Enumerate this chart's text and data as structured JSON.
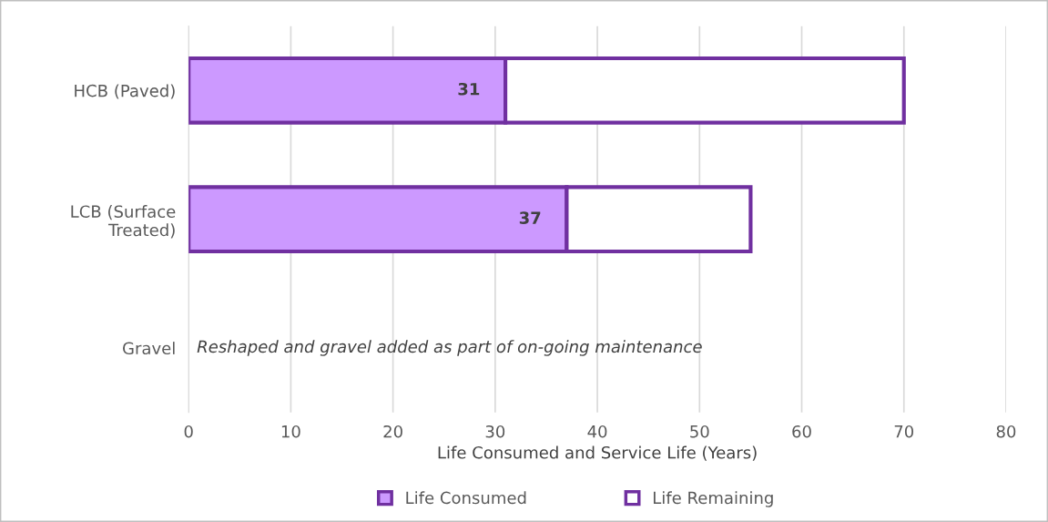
{
  "chart_data": {
    "type": "bar",
    "orientation": "horizontal",
    "stacked": true,
    "categories": [
      "HCB (Paved)",
      "LCB (Surface\nTreated)",
      "Gravel"
    ],
    "series": [
      {
        "name": "Life Consumed",
        "color": "#cc99ff",
        "values": [
          31,
          37,
          null
        ],
        "value_labels": [
          "31",
          "37",
          null
        ]
      },
      {
        "name": "Life Remaining",
        "color": "#7030a0",
        "values": [
          39,
          18,
          null
        ]
      }
    ],
    "xlabel": "Life Consumed and Service Life (Years)",
    "xlim": [
      0,
      80
    ],
    "xticks": [
      0,
      10,
      20,
      30,
      40,
      50,
      60,
      70,
      80
    ],
    "grid": "x",
    "legend": "bottom",
    "annotations": [
      "Reshaped and gravel added as part of on-going maintenance"
    ]
  }
}
